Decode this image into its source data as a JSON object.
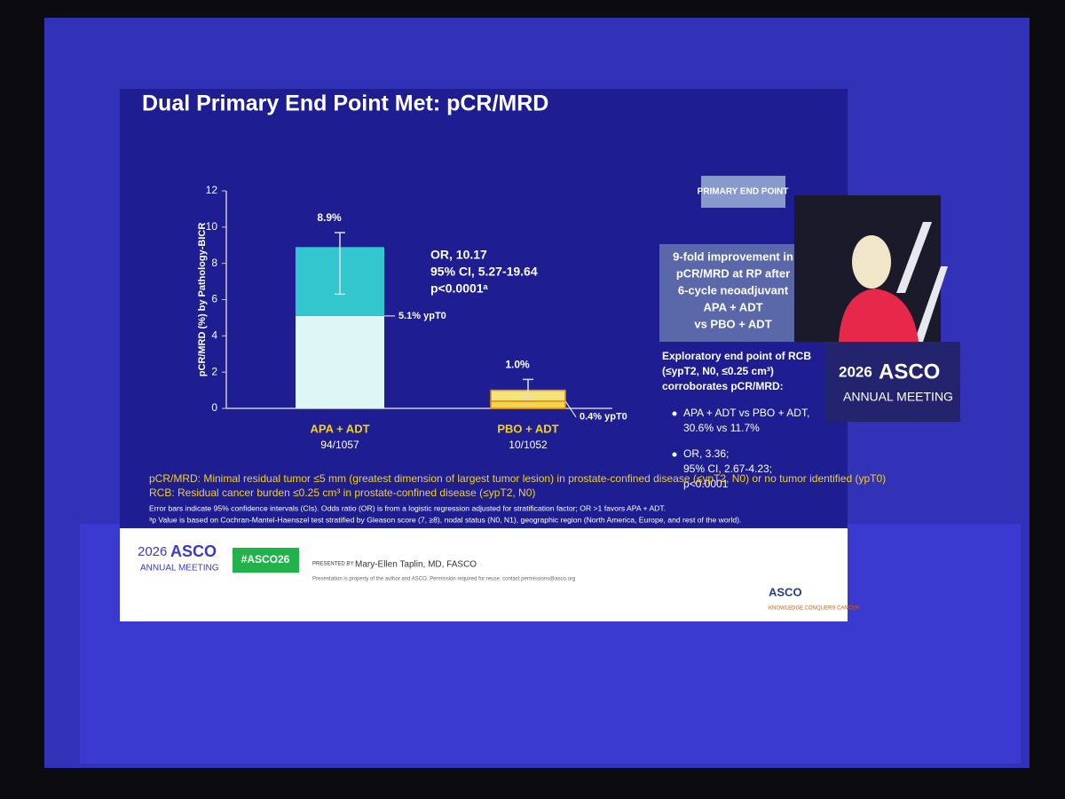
{
  "slide": {
    "title": "Dual Primary End Point Met: pCR/MRD",
    "badge": "PRIMARY END POINT",
    "highlight": [
      "9-fold improvement in",
      "pCR/MRD at RP after",
      "6-cycle neoadjuvant",
      "APA + ADT",
      "vs PBO + ADT"
    ],
    "exploratory": [
      "Exploratory end point of RCB",
      "(≤ypT2, N0, ≤0.25 cm³)",
      "corroborates pCR/MRD:"
    ],
    "bullets": [
      [
        "APA + ADT vs PBO + ADT,",
        "30.6% vs 11.7%"
      ],
      [
        "OR, 3.36;",
        "95% CI, 2.67-4.23;",
        "p<0.0001"
      ]
    ],
    "definitions": [
      "pCR/MRD: Minimal residual tumor ≤5 mm (greatest dimension of largest tumor lesion) in prostate-confined disease (≤ypT2, N0) or no tumor identified (ypT0)",
      "RCB: Residual cancer burden ≤0.25 cm³ in prostate-confined disease (≤ypT2, N0)"
    ],
    "notes": [
      "Error bars indicate 95% confidence intervals (CIs). Odds ratio (OR) is from a logistic regression adjusted for stratification factor; OR >1 favors APA + ADT.",
      "ᵃp Value is based on Cochran-Mantel-Haenszel test stratified by Gleason score (7, ≥8), nodal status (N0, N1), geographic region (North America, Europe, and rest of the world)."
    ],
    "footer": {
      "logo_year": "2026",
      "logo_name": "ASCO",
      "logo_sub": "ANNUAL MEETING",
      "hashtag": "#ASCO26",
      "presented_by": "PRESENTED BY:",
      "presenter": "Mary-Ellen Taplin, MD, FASCO",
      "property": "Presentation is property of the author and ASCO. Permission required for reuse; contact permissions@asco.org",
      "org": "ASCO",
      "tagline": "KNOWLEDGE CONQUERS CANCER"
    }
  },
  "speaker_panel": {
    "year": "2026",
    "name": "ASCO",
    "sub": "ANNUAL MEETING"
  },
  "chart_data": {
    "type": "bar",
    "stacked": true,
    "ylabel": "pCR/MRD (%) by Pathology-BICR",
    "categories": [
      "APA + ADT",
      "PBO + ADT"
    ],
    "category_counts": [
      "94/1057",
      "10/1052"
    ],
    "ylim": [
      0,
      12
    ],
    "yticks": [
      0,
      2,
      4,
      6,
      8,
      10,
      12
    ],
    "series": [
      {
        "colors": [
          "#dcf7f6",
          "#f7d54a"
        ],
        "values": [
          5.1,
          0.4
        ],
        "value_labels": [
          "5.1% ypT0",
          "0.4% ypT0"
        ]
      },
      {
        "colors": [
          "#33c6cf",
          "#f4e27a"
        ],
        "values": [
          3.8,
          0.6
        ]
      }
    ],
    "totals": [
      8.9,
      1.0
    ],
    "total_labels": [
      "8.9%",
      "1.0%"
    ],
    "error_low": [
      6.3,
      0.5
    ],
    "error_high": [
      9.7,
      1.6
    ],
    "annotation": [
      "OR, 10.17",
      "95% CI, 5.27-19.64",
      "p<0.0001ᵃ"
    ]
  }
}
